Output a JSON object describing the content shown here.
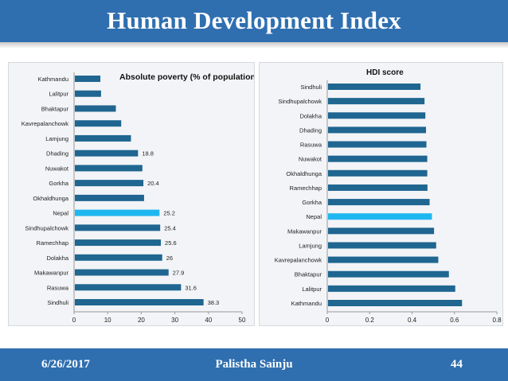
{
  "slide": {
    "title": "Human Development Index",
    "footer_date": "6/26/2017",
    "footer_author": "Palistha Sainju",
    "footer_page": "44"
  },
  "colors": {
    "bar": "#1f6690",
    "highlight": "#1fb7f0",
    "header": "#2f6fb0"
  },
  "chart_data": [
    {
      "type": "bar",
      "orientation": "horizontal",
      "title": "Absolute poverty (% of population)",
      "categories": [
        "Kathmandu",
        "Lalitpur",
        "Bhaktapur",
        "Kavrepalanchowk",
        "Lamjung",
        "Dhading",
        "Nuwakot",
        "Gorkha",
        "Okhaldhunga",
        "Nepal",
        "Sindhupalchowk",
        "Ramechhap",
        "Dolakha",
        "Makawanpur",
        "Rasuwa",
        "Sindhuli"
      ],
      "values": [
        7.6,
        7.8,
        12.2,
        13.8,
        16.7,
        18.8,
        20.1,
        20.4,
        20.6,
        25.2,
        25.4,
        25.6,
        26,
        27.9,
        31.6,
        38.3
      ],
      "data_labels": [
        "",
        "",
        "",
        "",
        "",
        "18.8",
        "",
        "20.4",
        "",
        "25.2",
        "25.4",
        "25.6",
        "26",
        "27.9",
        "31.6",
        "38.3"
      ],
      "highlight": "Nepal",
      "xlim": [
        0,
        50
      ],
      "xticks": [
        "0",
        "10",
        "20",
        "30",
        "40",
        "50"
      ]
    },
    {
      "type": "bar",
      "orientation": "horizontal",
      "title": "HDI score",
      "categories": [
        "Sindhuli",
        "Sindhupalchowk",
        "Dolakha",
        "Dhading",
        "Rasuwa",
        "Nuwakot",
        "Okhaldhunga",
        "Ramechhap",
        "Gorkha",
        "Nepal",
        "Makawanpur",
        "Lamjung",
        "Kavrepalanchowk",
        "Bhaktapur",
        "Lalitpur",
        "Kathmandu"
      ],
      "values": [
        0.436,
        0.455,
        0.459,
        0.462,
        0.464,
        0.468,
        0.468,
        0.469,
        0.479,
        0.49,
        0.5,
        0.51,
        0.52,
        0.57,
        0.6,
        0.632
      ],
      "highlight": "Nepal",
      "xlim": [
        0,
        0.8
      ],
      "xticks": [
        "0",
        "0.2",
        "0.4",
        "0.6",
        "0.8"
      ]
    }
  ]
}
